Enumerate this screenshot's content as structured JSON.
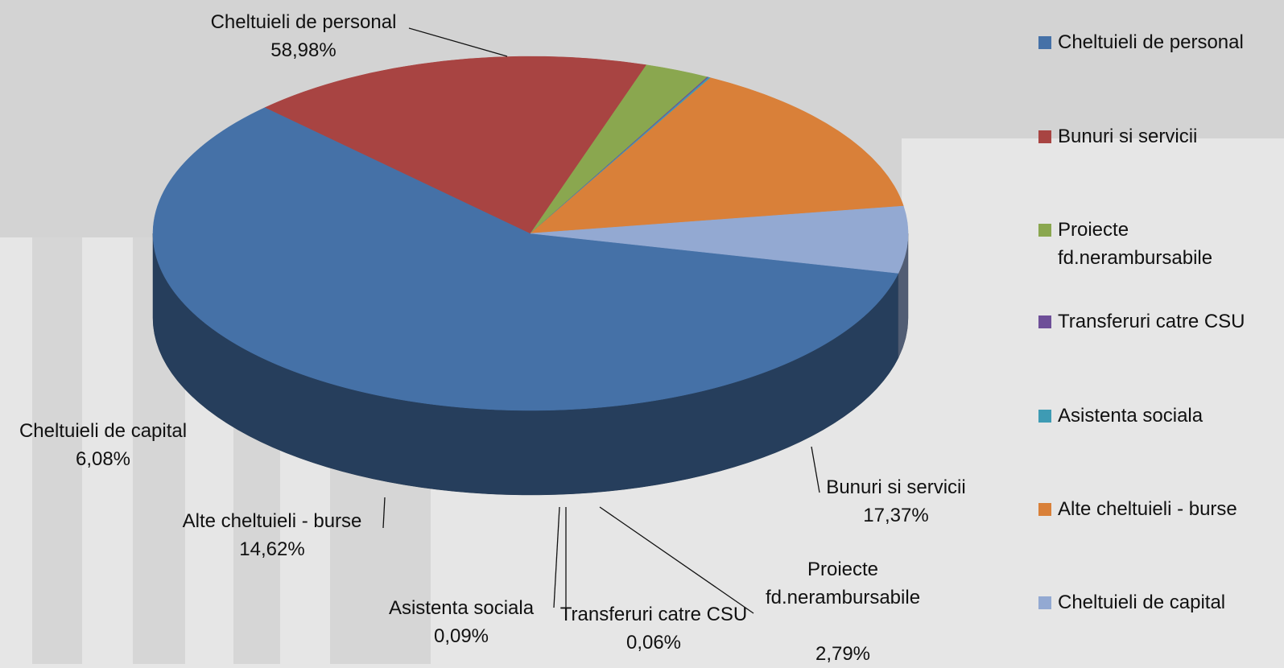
{
  "chart_data": {
    "type": "pie3d",
    "categories": [
      "Cheltuieli de personal",
      "Bunuri si servicii",
      "Proiecte fd.nerambursabile",
      "Transferuri catre CSU",
      "Asistenta sociala",
      "Alte cheltuieli - burse",
      "Cheltuieli de capital"
    ],
    "values": [
      58.98,
      17.37,
      2.79,
      0.06,
      0.09,
      14.62,
      6.08
    ],
    "value_labels": [
      "58,98%",
      "17,37%",
      "2,79%",
      "0,06%",
      "0,09%",
      "14,62%",
      "6,08%"
    ],
    "colors": [
      "#4571a7",
      "#a84442",
      "#8aa74f",
      "#6e4f98",
      "#3e9bb4",
      "#d98039",
      "#93a9d2"
    ],
    "legend": "right"
  }
}
